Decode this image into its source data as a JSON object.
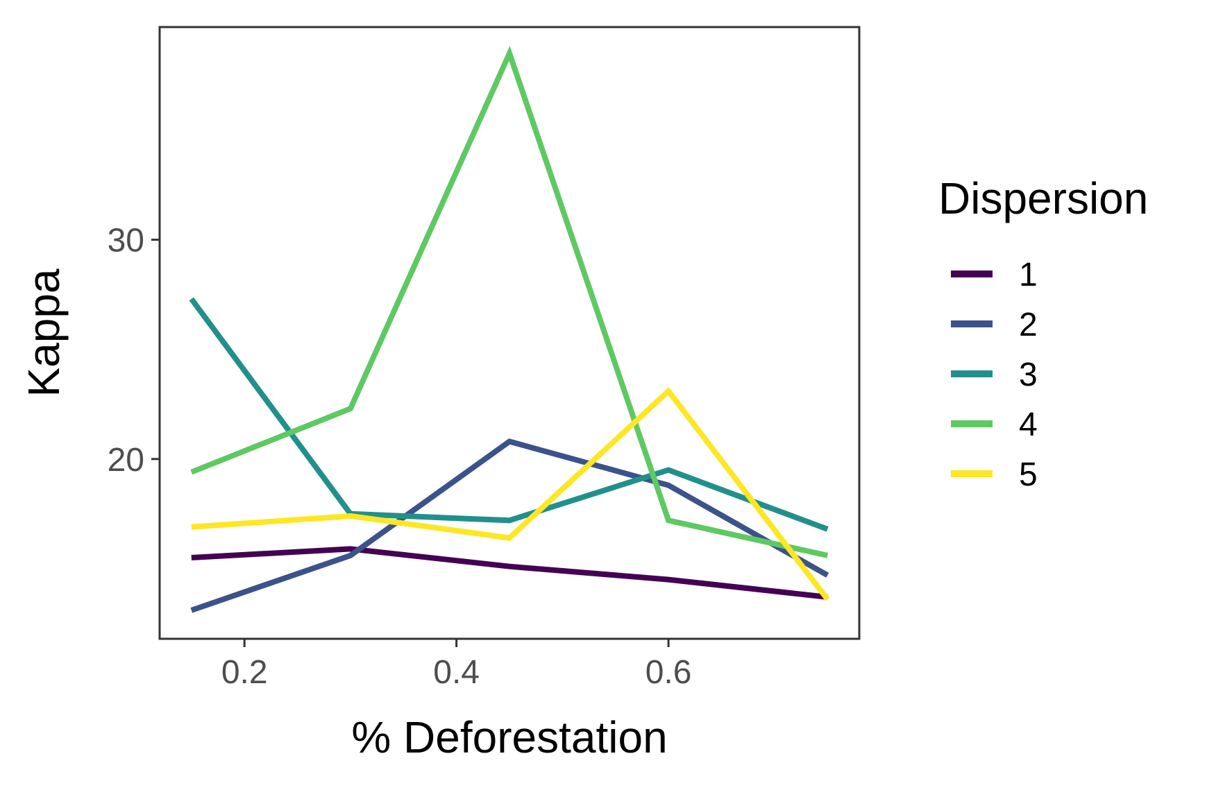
{
  "chart_data": {
    "type": "line",
    "xlabel": "% Deforestation",
    "ylabel": "Kappa",
    "xlim": [
      0.12,
      0.78
    ],
    "ylim": [
      11.8,
      39.7
    ],
    "xticks": [
      0.2,
      0.4,
      0.6
    ],
    "yticks": [
      20,
      30
    ],
    "x": [
      0.15,
      0.3,
      0.45,
      0.6,
      0.75
    ],
    "legend": {
      "title": "Dispersion",
      "position": "right"
    },
    "grid": false,
    "series": [
      {
        "name": "1",
        "color": "#440154",
        "values": [
          15.5,
          15.9,
          15.1,
          14.5,
          13.7
        ]
      },
      {
        "name": "2",
        "color": "#3b528b",
        "values": [
          13.1,
          15.6,
          20.8,
          18.8,
          14.7
        ]
      },
      {
        "name": "3",
        "color": "#21908c",
        "values": [
          27.3,
          17.5,
          17.2,
          19.5,
          16.8
        ]
      },
      {
        "name": "4",
        "color": "#5ec962",
        "values": [
          19.4,
          22.3,
          38.5,
          17.2,
          15.6
        ]
      },
      {
        "name": "5",
        "color": "#fde725",
        "values": [
          16.9,
          17.4,
          16.4,
          23.1,
          13.6
        ]
      }
    ]
  }
}
